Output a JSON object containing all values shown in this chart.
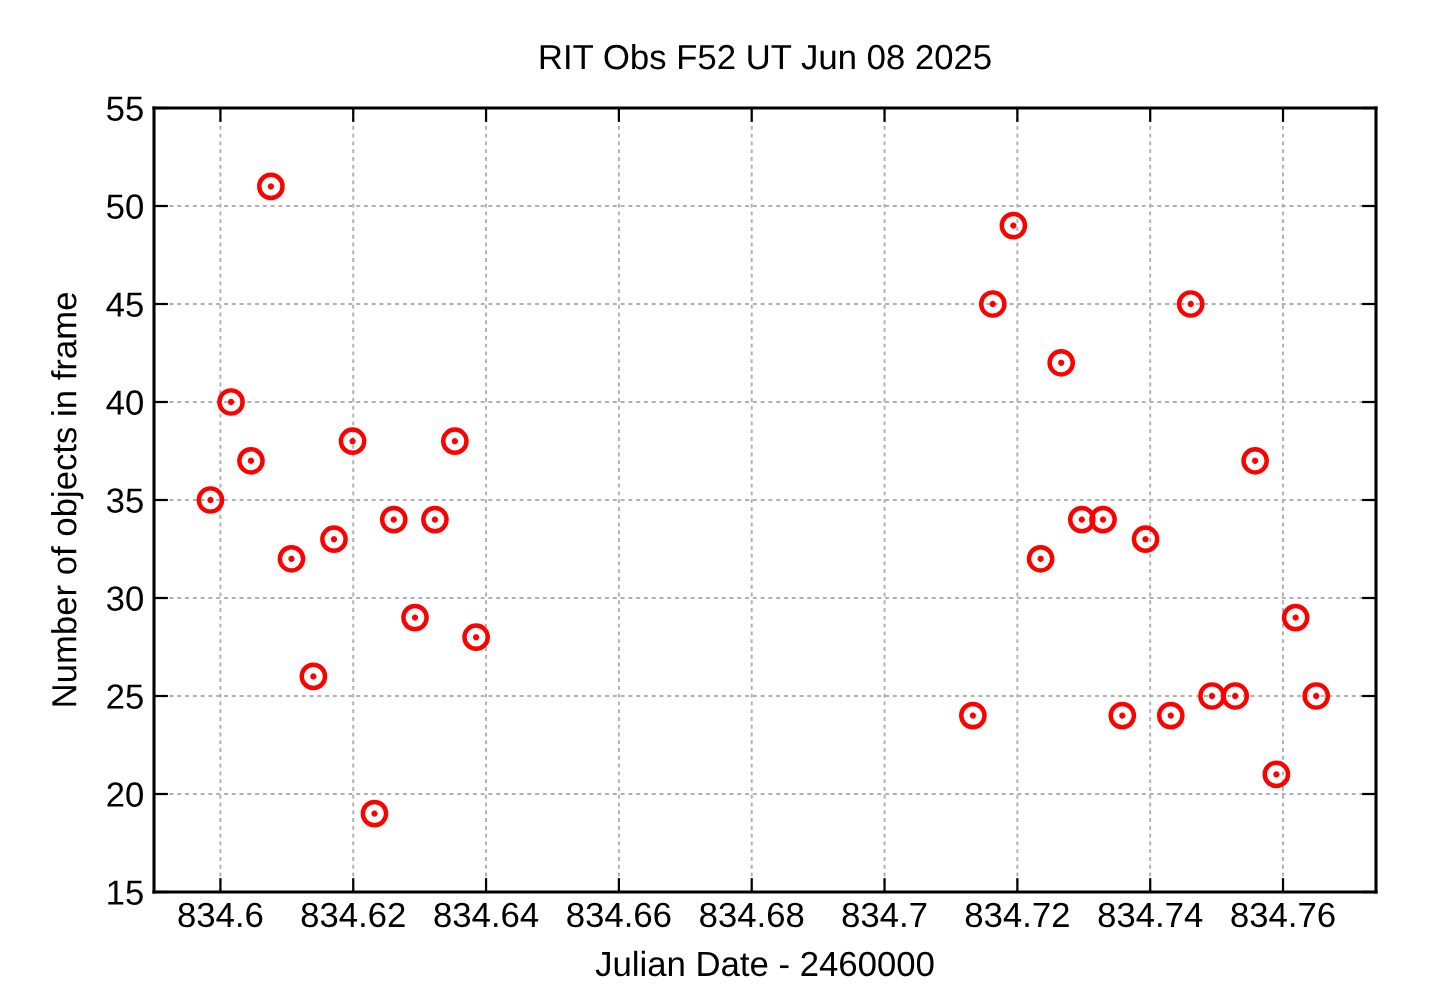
{
  "chart_data": {
    "type": "scatter",
    "title": "RIT Obs F52 UT Jun 08 2025",
    "xlabel": "Julian Date - 2460000",
    "ylabel": "Number of objects in frame",
    "x": [
      834.5985,
      834.6016,
      834.6046,
      834.6076,
      834.6107,
      834.614,
      834.6171,
      834.6199,
      834.6232,
      834.6261,
      834.6293,
      834.6323,
      834.6353,
      834.6385,
      834.7133,
      834.7163,
      834.7194,
      834.7235,
      834.7266,
      834.7297,
      834.7329,
      834.7358,
      834.7393,
      834.7431,
      834.7461,
      834.7493,
      834.7528,
      834.7558,
      834.759,
      834.7619,
      834.765
    ],
    "series": [
      {
        "color": "#ff0000",
        "values": [
          35,
          40,
          37,
          51,
          32,
          26,
          33,
          38,
          19,
          34,
          29,
          34,
          38,
          28,
          24,
          45,
          49,
          32,
          42,
          34,
          34,
          24,
          33,
          24,
          45,
          25,
          25,
          37,
          21,
          29,
          25
        ]
      }
    ],
    "xlim": [
      834.59,
      834.774
    ],
    "ylim": [
      15,
      55
    ],
    "xticks": [
      834.6,
      834.62,
      834.64,
      834.66,
      834.68,
      834.7,
      834.72,
      834.74,
      834.76
    ],
    "yticks": [
      15,
      20,
      25,
      30,
      35,
      40,
      45,
      50,
      55
    ],
    "grid": true,
    "marker": "circle"
  }
}
